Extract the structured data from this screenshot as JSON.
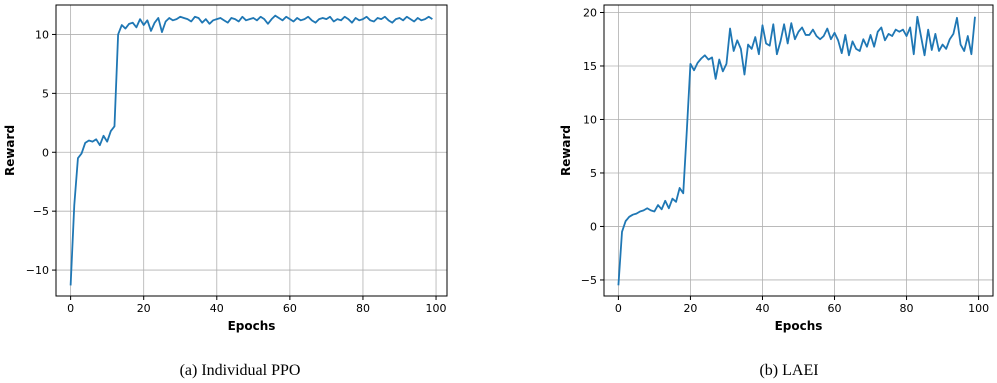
{
  "chart_data": [
    {
      "type": "line",
      "caption": "(a) Individual PPO",
      "xlabel": "Epochs",
      "ylabel": "Reward",
      "xlim": [
        -4,
        103
      ],
      "ylim": [
        -12.2,
        12.5
      ],
      "xticks": [
        0,
        20,
        40,
        60,
        80,
        100
      ],
      "yticks": [
        -10,
        -5,
        0,
        5,
        10
      ],
      "ytick_labels": [
        "−10",
        "−5",
        "0",
        "5",
        "10"
      ],
      "grid": true,
      "color": "#1f77b4",
      "x": [
        0,
        1,
        2,
        3,
        4,
        5,
        6,
        7,
        8,
        9,
        10,
        11,
        12,
        13,
        14,
        15,
        16,
        17,
        18,
        19,
        20,
        21,
        22,
        23,
        24,
        25,
        26,
        27,
        28,
        29,
        30,
        31,
        32,
        33,
        34,
        35,
        36,
        37,
        38,
        39,
        40,
        41,
        42,
        43,
        44,
        45,
        46,
        47,
        48,
        49,
        50,
        51,
        52,
        53,
        54,
        55,
        56,
        57,
        58,
        59,
        60,
        61,
        62,
        63,
        64,
        65,
        66,
        67,
        68,
        69,
        70,
        71,
        72,
        73,
        74,
        75,
        76,
        77,
        78,
        79,
        80,
        81,
        82,
        83,
        84,
        85,
        86,
        87,
        88,
        89,
        90,
        91,
        92,
        93,
        94,
        95,
        96,
        97,
        98,
        99
      ],
      "y": [
        -11.3,
        -4.5,
        -0.5,
        -0.1,
        0.8,
        1.0,
        0.9,
        1.1,
        0.6,
        1.4,
        0.9,
        1.8,
        2.2,
        10.0,
        10.8,
        10.5,
        10.9,
        11.0,
        10.6,
        11.3,
        10.8,
        11.2,
        10.3,
        11.0,
        11.4,
        10.2,
        11.1,
        11.4,
        11.2,
        11.3,
        11.5,
        11.4,
        11.3,
        11.1,
        11.5,
        11.4,
        11.0,
        11.3,
        10.9,
        11.2,
        11.3,
        11.4,
        11.2,
        11.0,
        11.4,
        11.3,
        11.1,
        11.5,
        11.2,
        11.3,
        11.4,
        11.2,
        11.5,
        11.3,
        10.9,
        11.3,
        11.6,
        11.4,
        11.2,
        11.5,
        11.3,
        11.1,
        11.4,
        11.2,
        11.3,
        11.5,
        11.2,
        11.0,
        11.3,
        11.4,
        11.3,
        11.5,
        11.1,
        11.3,
        11.2,
        11.5,
        11.3,
        11.0,
        11.4,
        11.2,
        11.3,
        11.5,
        11.2,
        11.1,
        11.4,
        11.3,
        11.5,
        11.2,
        11.0,
        11.3,
        11.4,
        11.2,
        11.5,
        11.3,
        11.1,
        11.4,
        11.2,
        11.3,
        11.5,
        11.3
      ]
    },
    {
      "type": "line",
      "caption": "(b) LAEI",
      "xlabel": "Epochs",
      "ylabel": "Reward",
      "xlim": [
        -4,
        104
      ],
      "ylim": [
        -6.5,
        20.7
      ],
      "xticks": [
        0,
        20,
        40,
        60,
        80,
        100
      ],
      "yticks": [
        -5,
        0,
        5,
        10,
        15,
        20
      ],
      "ytick_labels": [
        "−5",
        "0",
        "5",
        "10",
        "15",
        "20"
      ],
      "grid": true,
      "color": "#1f77b4",
      "x": [
        0,
        1,
        2,
        3,
        4,
        5,
        6,
        7,
        8,
        9,
        10,
        11,
        12,
        13,
        14,
        15,
        16,
        17,
        18,
        19,
        20,
        21,
        22,
        23,
        24,
        25,
        26,
        27,
        28,
        29,
        30,
        31,
        32,
        33,
        34,
        35,
        36,
        37,
        38,
        39,
        40,
        41,
        42,
        43,
        44,
        45,
        46,
        47,
        48,
        49,
        50,
        51,
        52,
        53,
        54,
        55,
        56,
        57,
        58,
        59,
        60,
        61,
        62,
        63,
        64,
        65,
        66,
        67,
        68,
        69,
        70,
        71,
        72,
        73,
        74,
        75,
        76,
        77,
        78,
        79,
        80,
        81,
        82,
        83,
        84,
        85,
        86,
        87,
        88,
        89,
        90,
        91,
        92,
        93,
        94,
        95,
        96,
        97,
        98,
        99
      ],
      "y": [
        -5.5,
        -0.5,
        0.5,
        0.9,
        1.1,
        1.2,
        1.4,
        1.5,
        1.7,
        1.5,
        1.4,
        2.0,
        1.6,
        2.4,
        1.7,
        2.6,
        2.3,
        3.6,
        3.1,
        9.0,
        15.2,
        14.6,
        15.3,
        15.7,
        16.0,
        15.6,
        15.8,
        13.8,
        15.6,
        14.5,
        15.2,
        18.5,
        16.4,
        17.4,
        16.6,
        14.2,
        17.0,
        16.6,
        17.7,
        16.1,
        18.8,
        17.1,
        16.9,
        18.9,
        16.1,
        17.3,
        18.9,
        17.1,
        19.0,
        17.5,
        18.2,
        18.6,
        17.9,
        17.9,
        18.4,
        17.8,
        17.5,
        17.8,
        18.5,
        17.5,
        18.1,
        17.4,
        16.2,
        17.9,
        16.0,
        17.3,
        16.6,
        16.4,
        17.5,
        16.8,
        17.9,
        16.8,
        18.2,
        18.6,
        17.4,
        18.0,
        17.8,
        18.4,
        18.2,
        18.4,
        17.8,
        18.6,
        16.1,
        19.6,
        17.8,
        16.0,
        18.4,
        16.5,
        18.0,
        16.4,
        17.0,
        16.6,
        17.5,
        18.0,
        19.5,
        17.0,
        16.4,
        17.8,
        16.1,
        19.6
      ]
    }
  ]
}
